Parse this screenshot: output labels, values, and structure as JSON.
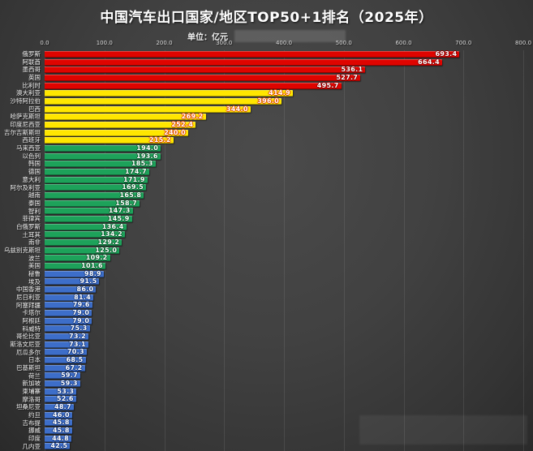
{
  "header": {
    "title": "中国汽车出口国家/地区TOP50+1排名（2025年）",
    "subtitle": "单位：亿元"
  },
  "chart_data": {
    "type": "bar",
    "orientation": "horizontal",
    "title": "中国汽车出口国家/地区TOP50+1排名（2025年）",
    "unit_label": "单位：亿元",
    "xlabel": "",
    "ylabel": "",
    "xlim": [
      0,
      800
    ],
    "x_ticks": [
      "0.0",
      "100.0",
      "200.0",
      "300.0",
      "400.0",
      "500.0",
      "600.0",
      "700.0",
      "800.0"
    ],
    "grid": true,
    "legend": "none",
    "colors": {
      "red": "#df0400",
      "yellow": "#ffe600",
      "green": "#1da25a",
      "blue": "#3d6ec9"
    },
    "value_outline_colors": {
      "red": "#8a0000",
      "yellow": "#e04a00",
      "green": "#0b5e2e",
      "blue": "#173a80"
    },
    "bars": [
      {
        "label": "俄罗斯",
        "value": 693.4,
        "group": "red"
      },
      {
        "label": "阿联酋",
        "value": 664.4,
        "group": "red"
      },
      {
        "label": "墨西哥",
        "value": 536.1,
        "group": "red"
      },
      {
        "label": "英国",
        "value": 527.7,
        "group": "red"
      },
      {
        "label": "比利时",
        "value": 495.7,
        "group": "red"
      },
      {
        "label": "澳大利亚",
        "value": 414.9,
        "group": "yellow"
      },
      {
        "label": "沙特阿拉伯",
        "value": 396.0,
        "group": "yellow"
      },
      {
        "label": "巴西",
        "value": 344.0,
        "group": "yellow"
      },
      {
        "label": "哈萨克斯坦",
        "value": 269.2,
        "group": "yellow"
      },
      {
        "label": "印度尼西亚",
        "value": 252.4,
        "group": "yellow"
      },
      {
        "label": "吉尔吉斯斯坦",
        "value": 240.0,
        "group": "yellow"
      },
      {
        "label": "西班牙",
        "value": 215.2,
        "group": "yellow"
      },
      {
        "label": "马来西亚",
        "value": 194.0,
        "group": "green"
      },
      {
        "label": "以色列",
        "value": 193.6,
        "group": "green"
      },
      {
        "label": "韩国",
        "value": 185.3,
        "group": "green"
      },
      {
        "label": "德国",
        "value": 174.7,
        "group": "green"
      },
      {
        "label": "意大利",
        "value": 171.9,
        "group": "green"
      },
      {
        "label": "阿尔及利亚",
        "value": 169.5,
        "group": "green"
      },
      {
        "label": "越南",
        "value": 165.8,
        "group": "green"
      },
      {
        "label": "泰国",
        "value": 158.7,
        "group": "green"
      },
      {
        "label": "智利",
        "value": 147.3,
        "group": "green"
      },
      {
        "label": "菲律宾",
        "value": 145.9,
        "group": "green"
      },
      {
        "label": "白俄罗斯",
        "value": 136.4,
        "group": "green"
      },
      {
        "label": "土耳其",
        "value": 134.2,
        "group": "green"
      },
      {
        "label": "南非",
        "value": 129.2,
        "group": "green"
      },
      {
        "label": "乌兹别克斯坦",
        "value": 125.0,
        "group": "green"
      },
      {
        "label": "波兰",
        "value": 109.2,
        "group": "green"
      },
      {
        "label": "美国",
        "value": 101.6,
        "group": "green"
      },
      {
        "label": "秘鲁",
        "value": 98.9,
        "group": "blue"
      },
      {
        "label": "埃及",
        "value": 91.5,
        "group": "blue"
      },
      {
        "label": "中国香港",
        "value": 86.0,
        "group": "blue"
      },
      {
        "label": "尼日利亚",
        "value": 81.4,
        "group": "blue"
      },
      {
        "label": "阿塞拜疆",
        "value": 79.6,
        "group": "blue"
      },
      {
        "label": "卡塔尔",
        "value": 79.0,
        "group": "blue"
      },
      {
        "label": "阿根廷",
        "value": 79.0,
        "group": "blue"
      },
      {
        "label": "科威特",
        "value": 75.3,
        "group": "blue"
      },
      {
        "label": "哥伦比亚",
        "value": 73.2,
        "group": "blue"
      },
      {
        "label": "斯洛文尼亚",
        "value": 73.1,
        "group": "blue"
      },
      {
        "label": "厄瓜多尔",
        "value": 70.3,
        "group": "blue"
      },
      {
        "label": "日本",
        "value": 68.5,
        "group": "blue"
      },
      {
        "label": "巴基斯坦",
        "value": 67.2,
        "group": "blue"
      },
      {
        "label": "荷兰",
        "value": 59.7,
        "group": "blue"
      },
      {
        "label": "新加坡",
        "value": 59.3,
        "group": "blue"
      },
      {
        "label": "柬埔寨",
        "value": 53.3,
        "group": "blue"
      },
      {
        "label": "摩洛哥",
        "value": 52.6,
        "group": "blue"
      },
      {
        "label": "坦桑尼亚",
        "value": 48.7,
        "group": "blue"
      },
      {
        "label": "约旦",
        "value": 46.0,
        "group": "blue"
      },
      {
        "label": "吉布提",
        "value": 45.8,
        "group": "blue"
      },
      {
        "label": "挪威",
        "value": 45.8,
        "group": "blue"
      },
      {
        "label": "印度",
        "value": 44.8,
        "group": "blue"
      },
      {
        "label": "几内亚",
        "value": 42.5,
        "group": "blue"
      }
    ]
  }
}
